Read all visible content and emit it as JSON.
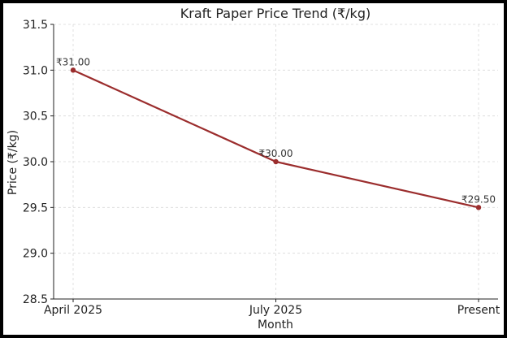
{
  "chart_data": {
    "type": "line",
    "title": "Kraft Paper Price Trend (₹/kg)",
    "xlabel": "Month",
    "ylabel": "Price (₹/kg)",
    "categories": [
      "April 2025",
      "July 2025",
      "Present"
    ],
    "values": [
      31.0,
      30.0,
      29.5
    ],
    "data_labels": [
      "₹31.00",
      "₹30.00",
      "₹29.50"
    ],
    "ylim": [
      28.5,
      31.5
    ],
    "yticks": [
      28.5,
      29.0,
      29.5,
      30.0,
      30.5,
      31.0,
      31.5
    ],
    "ytick_labels": [
      "28.5",
      "29.0",
      "29.5",
      "30.0",
      "30.5",
      "31.0",
      "31.5"
    ],
    "grid": true,
    "line_color": "#9b2d2d",
    "frame_color": "#000000"
  }
}
